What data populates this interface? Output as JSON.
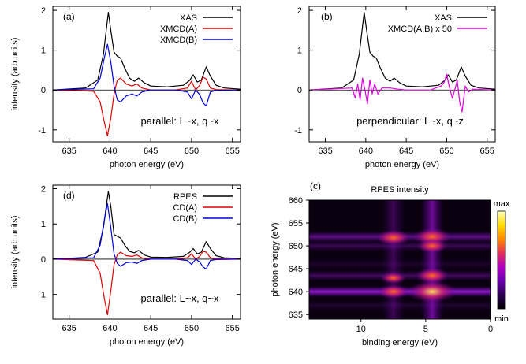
{
  "chart_data": [
    {
      "panel": "(a)",
      "type": "line",
      "xlabel": "photon energy (eV)",
      "ylabel": "intensity (arb.units)",
      "xlim": [
        633,
        656
      ],
      "ylim": [
        -1.3,
        2.1
      ],
      "xticks": [
        635,
        640,
        645,
        650,
        655
      ],
      "yticks": [
        -1,
        0,
        1,
        2
      ],
      "annotation": "parallel: L~x, q~x",
      "legend_position": "top-right",
      "series": [
        {
          "name": "XAS",
          "color": "#000000",
          "x": [
            633,
            637,
            638.5,
            639.2,
            639.6,
            639.8,
            640.1,
            640.5,
            640.9,
            641.3,
            641.8,
            642.4,
            643.0,
            643.5,
            644.2,
            645,
            647,
            649,
            649.8,
            650.2,
            650.7,
            651.2,
            651.8,
            652.3,
            653,
            654,
            656
          ],
          "y": [
            0,
            0.05,
            0.25,
            0.9,
            1.6,
            1.95,
            1.5,
            0.95,
            0.85,
            0.8,
            0.55,
            0.3,
            0.22,
            0.3,
            0.18,
            0.1,
            0.08,
            0.12,
            0.25,
            0.38,
            0.2,
            0.25,
            0.58,
            0.35,
            0.12,
            0.05,
            0.02
          ]
        },
        {
          "name": "XMCD(A)",
          "color": "#e00000",
          "x": [
            633,
            638,
            638.8,
            639.3,
            639.7,
            640.1,
            640.5,
            640.9,
            641.3,
            642,
            642.7,
            643.3,
            643.9,
            645,
            648,
            649.5,
            650.0,
            650.5,
            651.0,
            651.4,
            651.8,
            652.3,
            653,
            656
          ],
          "y": [
            0,
            -0.03,
            -0.3,
            -0.8,
            -1.15,
            -0.7,
            -0.1,
            0.25,
            0.3,
            0.15,
            0.1,
            0.15,
            0.05,
            0.0,
            0.0,
            0.05,
            0.22,
            0.0,
            0.12,
            0.32,
            0.28,
            0.05,
            0.01,
            0
          ]
        },
        {
          "name": "XMCD(B)",
          "color": "#0000e0",
          "x": [
            633,
            638,
            638.8,
            639.3,
            639.7,
            640.1,
            640.5,
            640.9,
            641.3,
            642,
            642.7,
            643.3,
            643.9,
            645,
            648,
            649.5,
            650.0,
            650.5,
            651.0,
            651.4,
            651.8,
            652.3,
            653,
            656
          ],
          "y": [
            0,
            0.03,
            0.3,
            0.8,
            1.15,
            0.7,
            0.1,
            -0.25,
            -0.3,
            -0.15,
            -0.1,
            -0.15,
            -0.05,
            0.0,
            0.0,
            -0.05,
            -0.22,
            0.0,
            -0.12,
            -0.32,
            -0.4,
            -0.05,
            -0.01,
            0
          ]
        }
      ]
    },
    {
      "panel": "(b)",
      "type": "line",
      "xlabel": "photon energy (eV)",
      "xlim": [
        633,
        656
      ],
      "ylim": [
        -1.3,
        2.1
      ],
      "xticks": [
        635,
        640,
        645,
        650,
        655
      ],
      "yticks": [
        -1,
        0,
        1,
        2
      ],
      "annotation": "perpendicular: L~x, q~z",
      "legend_position": "top-right",
      "series": [
        {
          "name": "XAS",
          "color": "#000000",
          "x": [
            633,
            637,
            638.5,
            639.2,
            639.6,
            639.8,
            640.1,
            640.5,
            640.9,
            641.3,
            641.8,
            642.4,
            643.0,
            643.5,
            644.2,
            645,
            647,
            649,
            649.8,
            650.2,
            650.7,
            651.2,
            651.8,
            652.3,
            653,
            654,
            656
          ],
          "y": [
            0,
            0.05,
            0.25,
            0.9,
            1.6,
            1.95,
            1.5,
            0.95,
            0.85,
            0.8,
            0.55,
            0.3,
            0.22,
            0.3,
            0.18,
            0.1,
            0.08,
            0.12,
            0.25,
            0.38,
            0.2,
            0.25,
            0.58,
            0.35,
            0.12,
            0.05,
            0.02
          ]
        },
        {
          "name": "XMCD(A,B) x 50",
          "color": "#e000e0",
          "x": [
            633,
            638.3,
            638.7,
            639.0,
            639.3,
            639.6,
            639.9,
            640.2,
            640.5,
            640.8,
            641.1,
            641.5,
            642,
            643,
            644,
            645,
            648,
            649.3,
            649.7,
            650.0,
            650.3,
            650.7,
            651.0,
            651.3,
            651.6,
            651.9,
            652.3,
            652.7,
            653.2,
            656
          ],
          "y": [
            0,
            0.05,
            -0.2,
            0.15,
            -0.25,
            0.3,
            0.0,
            -0.35,
            0.25,
            -0.1,
            0.15,
            -0.1,
            0.05,
            0.05,
            0.02,
            0.0,
            0.0,
            0.1,
            0.2,
            0.4,
            0.1,
            -0.2,
            0.0,
            0.25,
            -0.3,
            -0.55,
            0.1,
            -0.05,
            0.02,
            0
          ]
        }
      ]
    },
    {
      "panel": "(d)",
      "type": "line",
      "xlabel": "photon energy (eV)",
      "ylabel": "intensity (arb.units)",
      "xlim": [
        633,
        656
      ],
      "ylim": [
        -1.7,
        2.1
      ],
      "xticks": [
        635,
        640,
        645,
        650,
        655
      ],
      "yticks": [
        -1,
        0,
        1,
        2
      ],
      "annotation": "parallel: L~x, q~x",
      "legend_position": "top-right",
      "series": [
        {
          "name": "RPES",
          "color": "#000000",
          "x": [
            633,
            637,
            638.5,
            639.2,
            639.6,
            639.8,
            640.1,
            640.5,
            640.9,
            641.3,
            641.8,
            642.4,
            643.0,
            643.5,
            644.2,
            645,
            647,
            649,
            649.8,
            650.2,
            650.7,
            651.2,
            651.8,
            652.3,
            653,
            654,
            656
          ],
          "y": [
            0,
            0.05,
            0.2,
            0.9,
            1.6,
            1.92,
            1.5,
            0.7,
            0.65,
            0.6,
            0.4,
            0.22,
            0.18,
            0.25,
            0.12,
            0.06,
            0.05,
            0.08,
            0.2,
            0.3,
            0.15,
            0.2,
            0.5,
            0.3,
            0.1,
            0.04,
            0.02
          ]
        },
        {
          "name": "CD(A)",
          "color": "#e00000",
          "x": [
            633,
            638,
            638.8,
            639.3,
            639.7,
            640.1,
            640.5,
            640.9,
            641.3,
            642,
            642.7,
            643.3,
            643.9,
            645,
            648,
            649.5,
            650.0,
            650.5,
            651.0,
            651.4,
            651.8,
            652.3,
            653,
            656
          ],
          "y": [
            0,
            -0.04,
            -0.4,
            -1.1,
            -1.58,
            -0.9,
            -0.15,
            0.12,
            0.2,
            0.1,
            0.08,
            0.12,
            0.04,
            0.0,
            0.0,
            0.04,
            0.15,
            0.0,
            0.08,
            0.22,
            0.2,
            0.04,
            0.01,
            0
          ]
        },
        {
          "name": "CD(B)",
          "color": "#0000e0",
          "x": [
            633,
            638,
            638.8,
            639.3,
            639.7,
            640.1,
            640.5,
            640.9,
            641.3,
            642,
            642.7,
            643.3,
            643.9,
            645,
            648,
            649.5,
            650.0,
            650.5,
            651.0,
            651.4,
            651.8,
            652.3,
            653,
            656
          ],
          "y": [
            0,
            0.04,
            0.4,
            1.1,
            1.58,
            0.9,
            0.15,
            -0.12,
            -0.2,
            -0.1,
            -0.08,
            -0.12,
            -0.04,
            0.0,
            0.0,
            -0.04,
            -0.15,
            0.0,
            -0.08,
            -0.22,
            -0.28,
            -0.04,
            -0.01,
            0
          ]
        }
      ]
    },
    {
      "panel": "(c)",
      "type": "heatmap",
      "title": "RPES intensity",
      "xlabel": "binding energy (eV)",
      "ylabel": "photon energy (eV)",
      "xlim": [
        14,
        0
      ],
      "ylim": [
        634,
        660
      ],
      "xticks": [
        10,
        5,
        0
      ],
      "yticks": [
        635,
        640,
        645,
        650,
        655,
        660
      ],
      "colorbar_labels": {
        "max": "max",
        "min": "min"
      },
      "colormap": [
        "#000000",
        "#2a0050",
        "#6a00b0",
        "#b000c0",
        "#e0305a",
        "#ff8800",
        "#ffdd00",
        "#ffffc0"
      ],
      "features": [
        {
          "x": 4.5,
          "y": 640,
          "intensity": 1.0
        },
        {
          "x": 4.5,
          "y": 643.5,
          "intensity": 0.55
        },
        {
          "x": 4.5,
          "y": 652,
          "intensity": 0.65
        },
        {
          "x": 4.5,
          "y": 650,
          "intensity": 0.45
        },
        {
          "x": 7.5,
          "y": 651.8,
          "intensity": 0.55
        },
        {
          "x": 7.5,
          "y": 640,
          "intensity": 0.45
        },
        {
          "x": 7.5,
          "y": 643,
          "intensity": 0.3
        }
      ]
    }
  ]
}
